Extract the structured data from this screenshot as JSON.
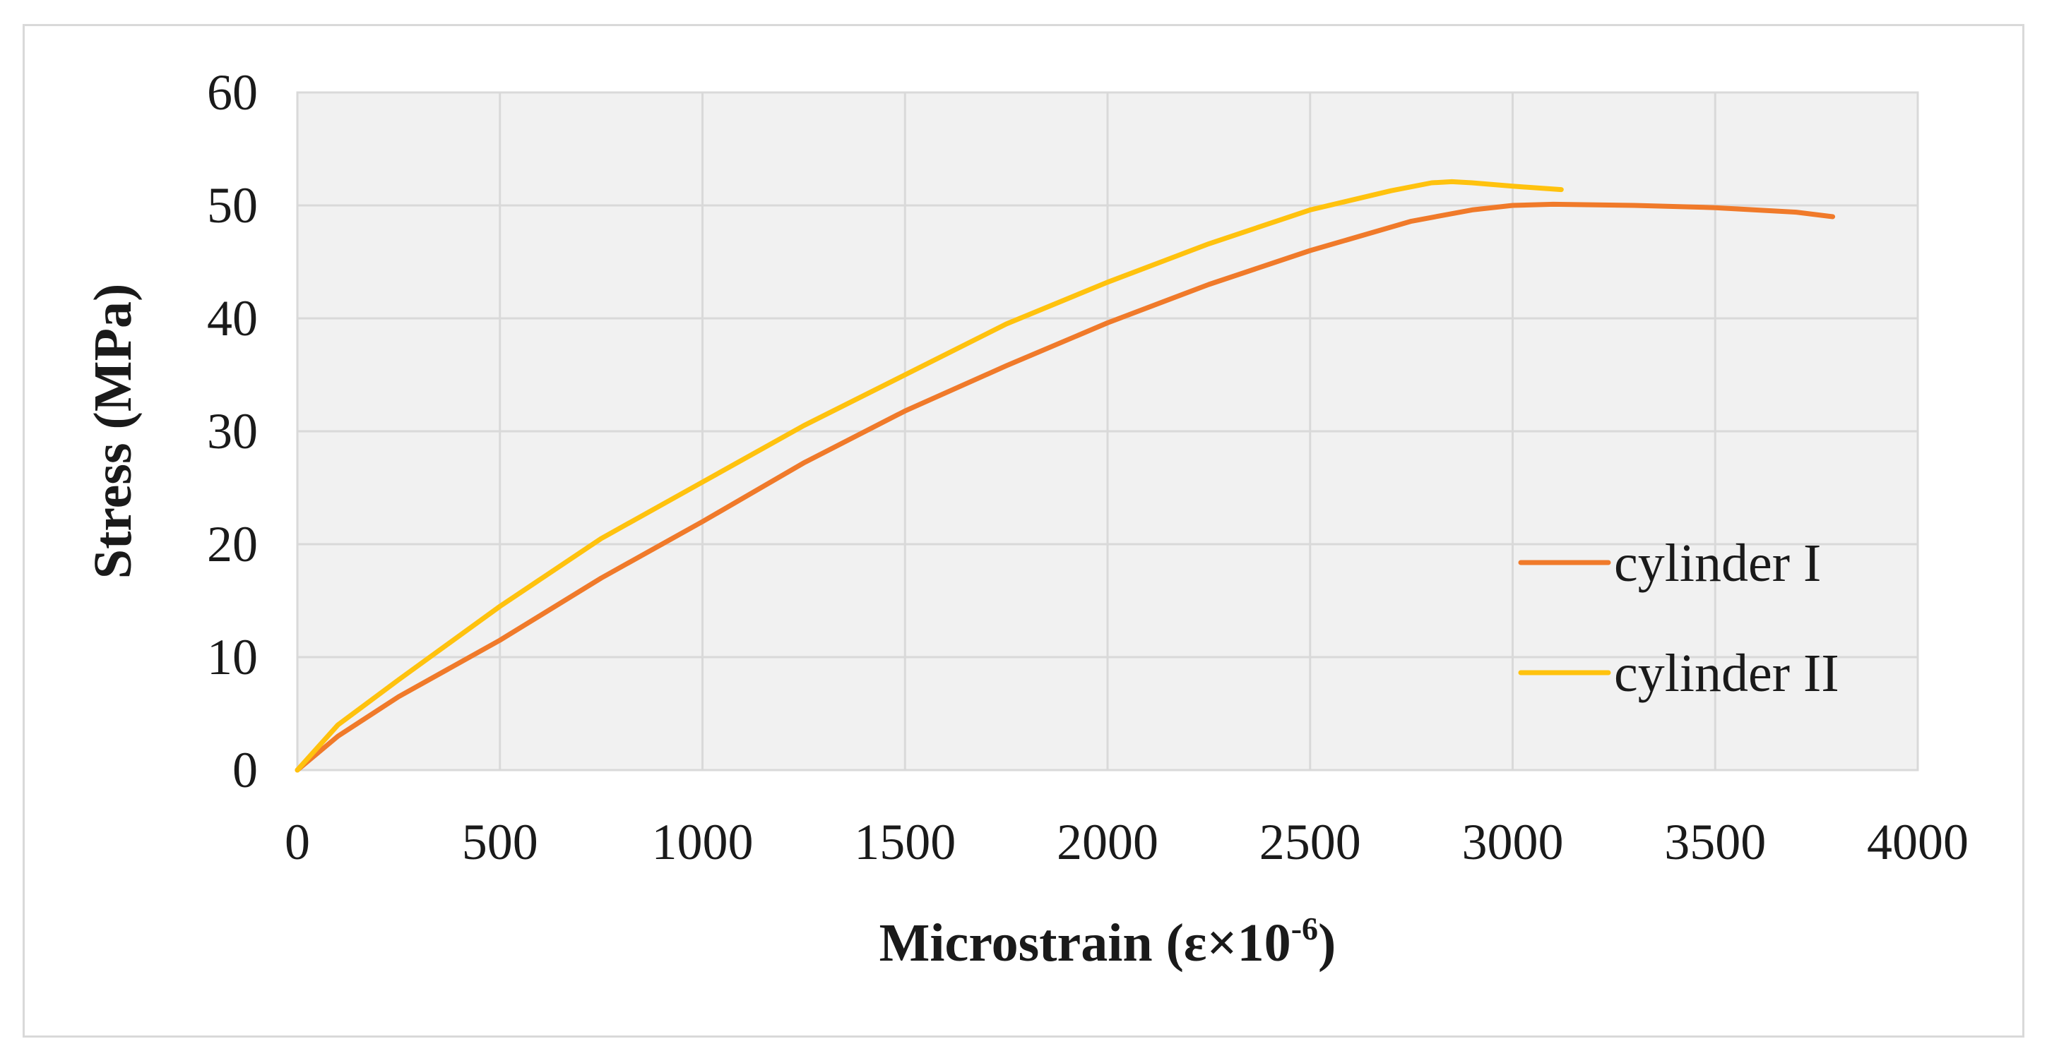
{
  "chart_data": {
    "type": "line",
    "title": "",
    "xlabel": "Microstrain (ε×10",
    "xlabel_sup": "-6",
    "xlabel_tail": ")",
    "ylabel": "Stress (MPa)",
    "xlim": [
      0,
      4000
    ],
    "ylim": [
      0,
      60
    ],
    "xticks": [
      0,
      500,
      1000,
      1500,
      2000,
      2500,
      3000,
      3500,
      4000
    ],
    "yticks": [
      0,
      10,
      20,
      30,
      40,
      50,
      60
    ],
    "grid": true,
    "legend_position": "right",
    "series": [
      {
        "name": "cylinder I",
        "color": "#f07a2a",
        "x": [
          0,
          100,
          250,
          500,
          750,
          1000,
          1250,
          1500,
          1750,
          2000,
          2250,
          2500,
          2750,
          2900,
          3000,
          3100,
          3300,
          3500,
          3700,
          3790
        ],
        "y": [
          0,
          3,
          6.5,
          11.5,
          17,
          22,
          27.2,
          31.8,
          35.8,
          39.6,
          43,
          46,
          48.6,
          49.6,
          50,
          50.1,
          50,
          49.8,
          49.4,
          49
        ]
      },
      {
        "name": "cylinder II",
        "color": "#ffc20e",
        "x": [
          0,
          100,
          250,
          500,
          750,
          1000,
          1250,
          1500,
          1750,
          2000,
          2250,
          2500,
          2700,
          2800,
          2850,
          2900,
          3000,
          3120
        ],
        "y": [
          0,
          4,
          8,
          14.5,
          20.5,
          25.5,
          30.5,
          35,
          39.5,
          43.2,
          46.6,
          49.6,
          51.3,
          52,
          52.1,
          52,
          51.7,
          51.4
        ]
      }
    ]
  }
}
